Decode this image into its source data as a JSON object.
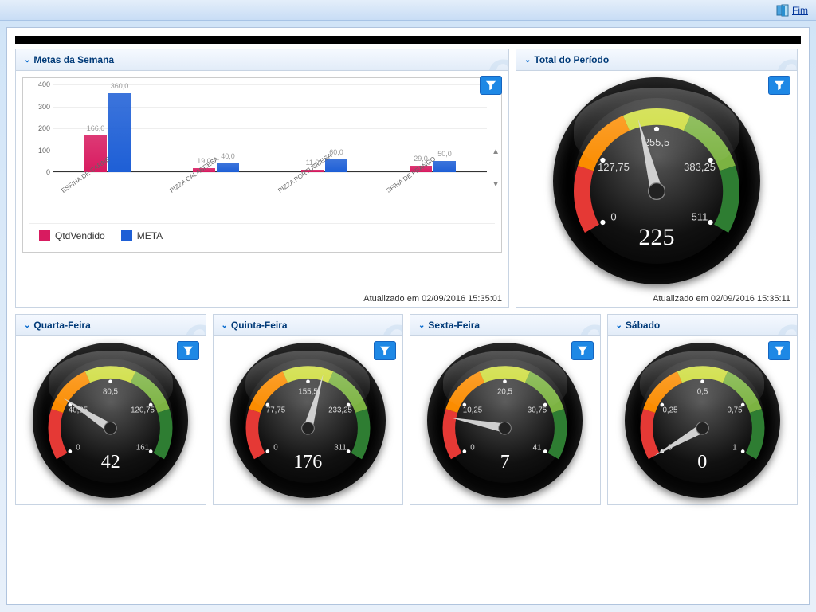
{
  "topbar": {
    "fim_label": "Fim"
  },
  "updated_prefix": "Atualizado em",
  "panels": {
    "metas": {
      "title": "Metas da Semana",
      "updated": "02/09/2016 15:35:01",
      "chart": {
        "type": "bar",
        "ymax": 400,
        "ytick": 100,
        "categories": [
          "ESFIHA DE CARNE",
          "PIZZA CALABRESA",
          "PIZZA PORTUGUESA",
          "SFIHA DE FRANGO"
        ],
        "series": [
          {
            "name": "QtdVendido",
            "color": "#d81b60",
            "values": [
              166.0,
              19.0,
              11.0,
              29.0
            ]
          },
          {
            "name": "META",
            "color": "#1e5fd6",
            "values": [
              360.0,
              40.0,
              60.0,
              50.0
            ]
          }
        ],
        "value_label_color": "#aaaaaa",
        "value_label_fontsize": 9,
        "xlabel_fontsize": 8,
        "grid_color": "#eeeeee",
        "axis_color": "#333333"
      }
    },
    "total": {
      "title": "Total do Período",
      "updated": "02/09/2016 15:35:11",
      "gauge": {
        "value": 225,
        "max": 511,
        "ticks": [
          0,
          127.75,
          255.5,
          383.25,
          511
        ]
      }
    },
    "quarta": {
      "title": "Quarta-Feira",
      "gauge": {
        "value": 42,
        "max": 161,
        "ticks": [
          0,
          40.25,
          80.5,
          120.75,
          161
        ]
      }
    },
    "quinta": {
      "title": "Quinta-Feira",
      "gauge": {
        "value": 176,
        "max": 311,
        "ticks": [
          0,
          77.75,
          155.5,
          233.25,
          311
        ]
      }
    },
    "sexta": {
      "title": "Sexta-Feira",
      "gauge": {
        "value": 7,
        "max": 41,
        "ticks": [
          0,
          10.25,
          20.5,
          30.75,
          41
        ]
      }
    },
    "sabado": {
      "title": "Sábado",
      "gauge": {
        "value": 0,
        "max": 1,
        "ticks": [
          0,
          0.25,
          0.5,
          0.75,
          1
        ]
      }
    }
  },
  "gauge_style": {
    "arc_colors": [
      "#e53935",
      "#fb8c00",
      "#cddc39",
      "#7cb342",
      "#2e7d32"
    ],
    "arc_start_deg": 210,
    "arc_end_deg": -30,
    "needle_color": "#d0d0d0",
    "tick_label_color": "#dddddd",
    "face_gradient": [
      "#555555",
      "#000000"
    ],
    "value_color": "#ffffff"
  },
  "filter_btn_color": "#1e88e5"
}
